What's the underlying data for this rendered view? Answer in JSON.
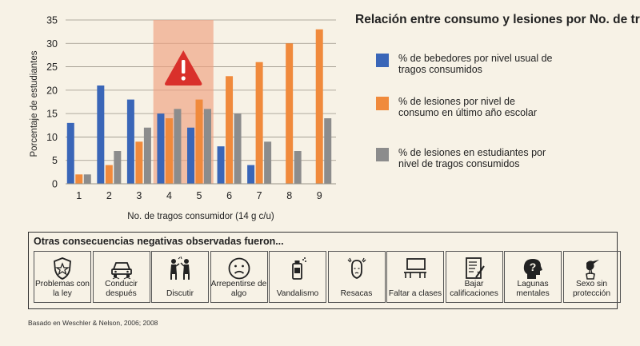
{
  "chart_data": {
    "type": "bar",
    "title": "Relación entre consumo y lesiones por No. de tragos",
    "xlabel": "No. de tragos consumidor (14 g c/u)",
    "ylabel": "Porcentaje de estudiantes",
    "categories": [
      "1",
      "2",
      "3",
      "4",
      "5",
      "6",
      "7",
      "8",
      "9"
    ],
    "yticks": [
      "0",
      "5",
      "10",
      "15",
      "20",
      "25",
      "30",
      "35"
    ],
    "ylim": [
      0,
      35
    ],
    "grid": true,
    "legend_position": "right",
    "highlight_range": [
      "4",
      "5"
    ],
    "highlight_icon": "warning-icon",
    "series": [
      {
        "name": "% de bebedores por nivel usual de tragos consumidos",
        "color": "#3a66b8",
        "values": [
          13,
          21,
          18,
          15,
          12,
          8,
          4,
          null,
          null
        ]
      },
      {
        "name": "% de lesiones por nivel de consumo en último año escolar",
        "color": "#f08a3c",
        "values": [
          2,
          4,
          9,
          14,
          18,
          23,
          26,
          30,
          33
        ]
      },
      {
        "name": "% de lesiones en estudiantes por nivel de tragos consumidos",
        "color": "#8c8c8c",
        "values": [
          2,
          7,
          12,
          16,
          16,
          15,
          9,
          7,
          14
        ]
      }
    ]
  },
  "consequences": {
    "title": "Otras consecuencias negativas observadas fueron...",
    "items": [
      {
        "label": "Problemas con la ley",
        "icon": "police-badge-icon"
      },
      {
        "label": "Conducir después",
        "icon": "car-icon"
      },
      {
        "label": "Discutir",
        "icon": "argument-icon"
      },
      {
        "label": "Arrepentirse de algo",
        "icon": "sad-face-icon"
      },
      {
        "label": "Vandalismo",
        "icon": "spray-can-icon"
      },
      {
        "label": "Resacas",
        "icon": "headache-icon"
      },
      {
        "label": "Faltar a clases",
        "icon": "classroom-icon"
      },
      {
        "label": "Bajar calificaciones",
        "icon": "graded-paper-icon"
      },
      {
        "label": "Lagunas mentales",
        "icon": "question-head-icon"
      },
      {
        "label": "Sexo sin protección",
        "icon": "stork-icon"
      }
    ]
  },
  "source": "Basado en Weschler & Nelson, 2006; 2008"
}
